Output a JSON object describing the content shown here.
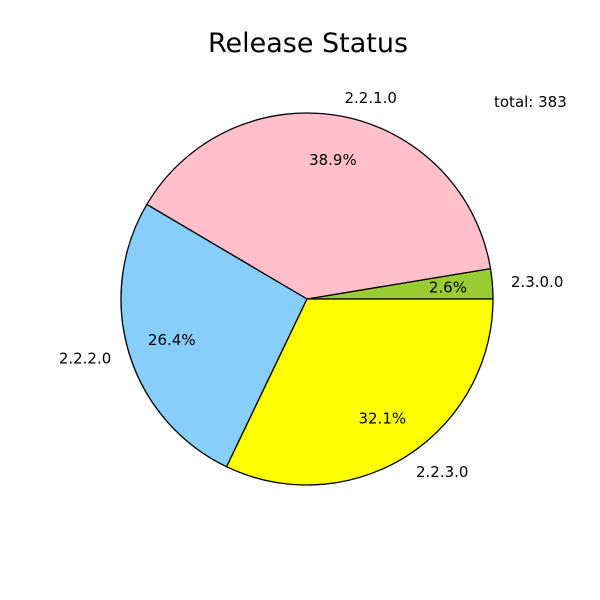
{
  "chart_data": {
    "type": "pie",
    "title": "Release Status",
    "annotation": "total: 383",
    "start_angle_deg": 0,
    "direction": "counterclockwise",
    "edge_color": "#000000",
    "slices": [
      {
        "label": "2.3.0.0",
        "value": 10,
        "percent_label": "2.6%",
        "color": "#9ACD32"
      },
      {
        "label": "2.2.1.0",
        "value": 149,
        "percent_label": "38.9%",
        "color": "#FFC0CB"
      },
      {
        "label": "2.2.2.0",
        "value": 101,
        "percent_label": "26.4%",
        "color": "#87CEFA"
      },
      {
        "label": "2.2.3.0",
        "value": 123,
        "percent_label": "32.1%",
        "color": "#FFFF00"
      }
    ]
  }
}
